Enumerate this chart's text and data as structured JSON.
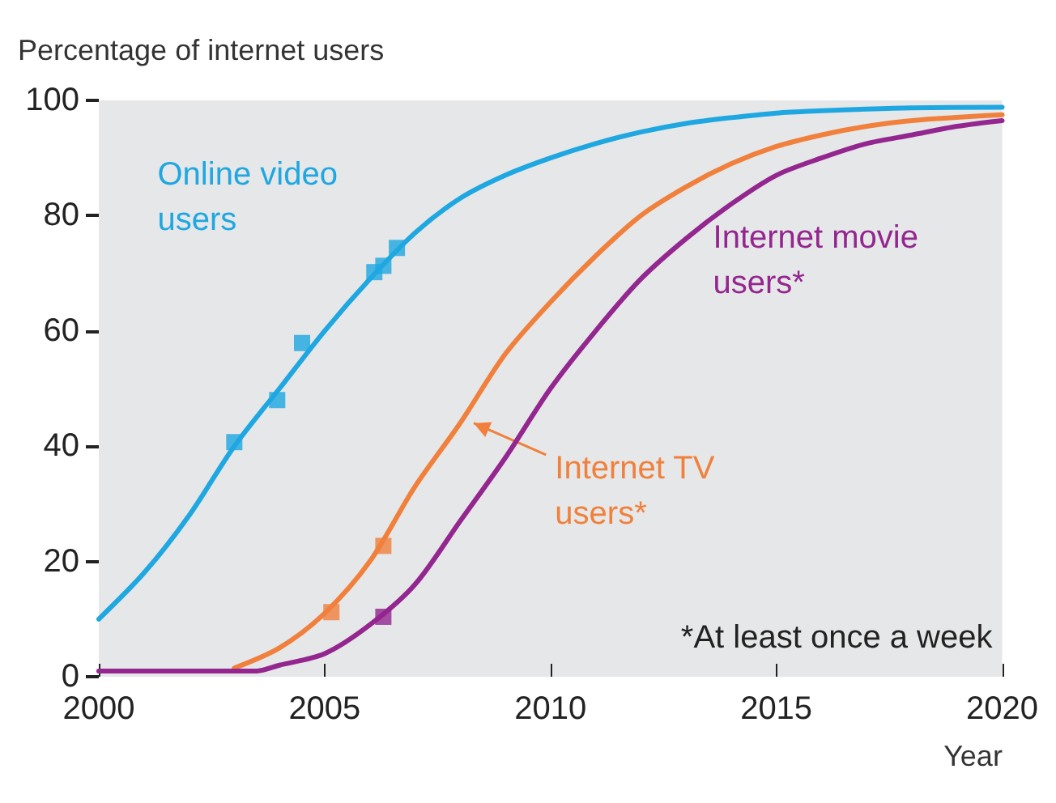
{
  "chart_data": {
    "type": "line",
    "ylabel": "Percentage of internet users",
    "xlabel": "Year",
    "xlim": [
      2000,
      2020
    ],
    "xticks": [
      2000,
      2005,
      2010,
      2015,
      2020
    ],
    "ylim": [
      0,
      100
    ],
    "yticks": [
      0,
      20,
      40,
      60,
      80,
      100
    ],
    "grid": false,
    "legend": false,
    "marker": "none",
    "series": [
      {
        "name": "Online video users",
        "color": "#1ea7e1",
        "x": [
          2000,
          2001,
          2002,
          2003,
          2004,
          2005,
          2006,
          2007,
          2008,
          2009,
          2010,
          2011,
          2012,
          2013,
          2014,
          2015,
          2016,
          2017,
          2018,
          2020
        ],
        "values": [
          10,
          18,
          28,
          40,
          50,
          60,
          69,
          77,
          83,
          87,
          90,
          92.5,
          94.5,
          96,
          97,
          97.8,
          98.2,
          98.5,
          98.7,
          98.8
        ]
      },
      {
        "name": "Internet TV users*",
        "color": "#f0803c",
        "x": [
          2003,
          2004,
          2005,
          2006,
          2007,
          2008,
          2009,
          2010,
          2011,
          2012,
          2013,
          2014,
          2015,
          2016,
          2017,
          2018,
          2020
        ],
        "values": [
          1.5,
          5,
          11,
          20,
          33,
          44,
          56,
          65,
          73,
          80,
          85,
          89,
          92,
          94,
          95.5,
          96.5,
          97.5
        ]
      },
      {
        "name": "Internet movie users*",
        "color": "#94268f",
        "x": [
          2000,
          2001,
          2002,
          2003,
          2003.5,
          2004,
          2005,
          2006,
          2007,
          2008,
          2009,
          2010,
          2011,
          2012,
          2013,
          2014,
          2015,
          2016,
          2017,
          2018,
          2019,
          2020
        ],
        "values": [
          1,
          1,
          1,
          1,
          1,
          2,
          4,
          9,
          16,
          27,
          38,
          50,
          60,
          69,
          76,
          82,
          87,
          90,
          92.5,
          94,
          95.5,
          96.5
        ]
      },
      {
        "type": "scatter",
        "marker": "square",
        "color": "#1ea7e1",
        "x": [
          2003.0,
          2003.95,
          2004.5,
          2006.1,
          2006.3,
          2006.6
        ],
        "values": [
          40.7,
          48,
          57.9,
          70.2,
          71.3,
          74.4
        ]
      },
      {
        "type": "scatter",
        "marker": "square",
        "color": "#f0803c",
        "x": [
          2005.15,
          2006.3
        ],
        "values": [
          11.2,
          22.7
        ]
      },
      {
        "type": "scatter",
        "marker": "square",
        "color": "#94268f",
        "x": [
          2006.3
        ],
        "values": [
          10.4
        ]
      }
    ],
    "annotations": [
      "*At least once a week"
    ]
  }
}
